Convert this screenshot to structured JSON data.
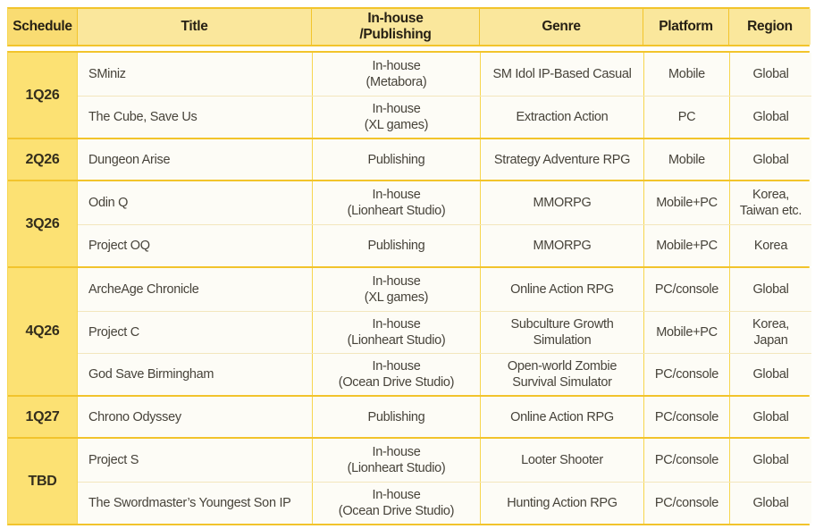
{
  "colors": {
    "border_gold": "#f2c42c",
    "border_light": "#f7d64f",
    "row_divider": "#f3e6bd",
    "header_bg": "#fae79c",
    "header_schedule_bg": "#f9dc72",
    "schedule_cell_bg": "#fce173",
    "body_cell_bg": "#fdfcf6",
    "header_text": "#262014",
    "body_text": "#47433a"
  },
  "chart_data": {
    "type": "table",
    "columns": [
      "Schedule",
      "Title",
      "In-house\n/Publishing",
      "Genre",
      "Platform",
      "Region"
    ],
    "groups": [
      {
        "schedule": "1Q26",
        "rows": [
          {
            "title": "SMiniz",
            "inhouse": "In-house\n(Metabora)",
            "genre": "SM Idol IP-Based Casual",
            "platform": "Mobile",
            "region": "Global"
          },
          {
            "title": "The Cube, Save Us",
            "inhouse": "In-house\n(XL games)",
            "genre": "Extraction Action",
            "platform": "PC",
            "region": "Global"
          }
        ]
      },
      {
        "schedule": "2Q26",
        "rows": [
          {
            "title": "Dungeon Arise",
            "inhouse": "Publishing",
            "genre": "Strategy Adventure RPG",
            "platform": "Mobile",
            "region": "Global"
          }
        ]
      },
      {
        "schedule": "3Q26",
        "rows": [
          {
            "title": "Odin Q",
            "inhouse": "In-house\n(Lionheart Studio)",
            "genre": "MMORPG",
            "platform": "Mobile+PC",
            "region": "Korea,\nTaiwan etc."
          },
          {
            "title": "Project OQ",
            "inhouse": "Publishing",
            "genre": "MMORPG",
            "platform": "Mobile+PC",
            "region": "Korea"
          }
        ]
      },
      {
        "schedule": "4Q26",
        "rows": [
          {
            "title": "ArcheAge Chronicle",
            "inhouse": "In-house\n(XL games)",
            "genre": "Online Action RPG",
            "platform": "PC/console",
            "region": "Global"
          },
          {
            "title": "Project C",
            "inhouse": "In-house\n(Lionheart Studio)",
            "genre": "Subculture Growth\nSimulation",
            "platform": "Mobile+PC",
            "region": "Korea,\nJapan"
          },
          {
            "title": "God Save Birmingham",
            "inhouse": "In-house\n(Ocean Drive Studio)",
            "genre": "Open-world Zombie\nSurvival Simulator",
            "platform": "PC/console",
            "region": "Global"
          }
        ]
      },
      {
        "schedule": "1Q27",
        "rows": [
          {
            "title": "Chrono Odyssey",
            "inhouse": "Publishing",
            "genre": "Online Action RPG",
            "platform": "PC/console",
            "region": "Global"
          }
        ]
      },
      {
        "schedule": "TBD",
        "rows": [
          {
            "title": "Project S",
            "inhouse": "In-house\n(Lionheart Studio)",
            "genre": "Looter Shooter",
            "platform": "PC/console",
            "region": "Global"
          },
          {
            "title": "The Swordmaster’s Youngest Son IP",
            "inhouse": "In-house\n(Ocean Drive Studio)",
            "genre": "Hunting Action RPG",
            "platform": "PC/console",
            "region": "Global"
          }
        ]
      }
    ]
  }
}
